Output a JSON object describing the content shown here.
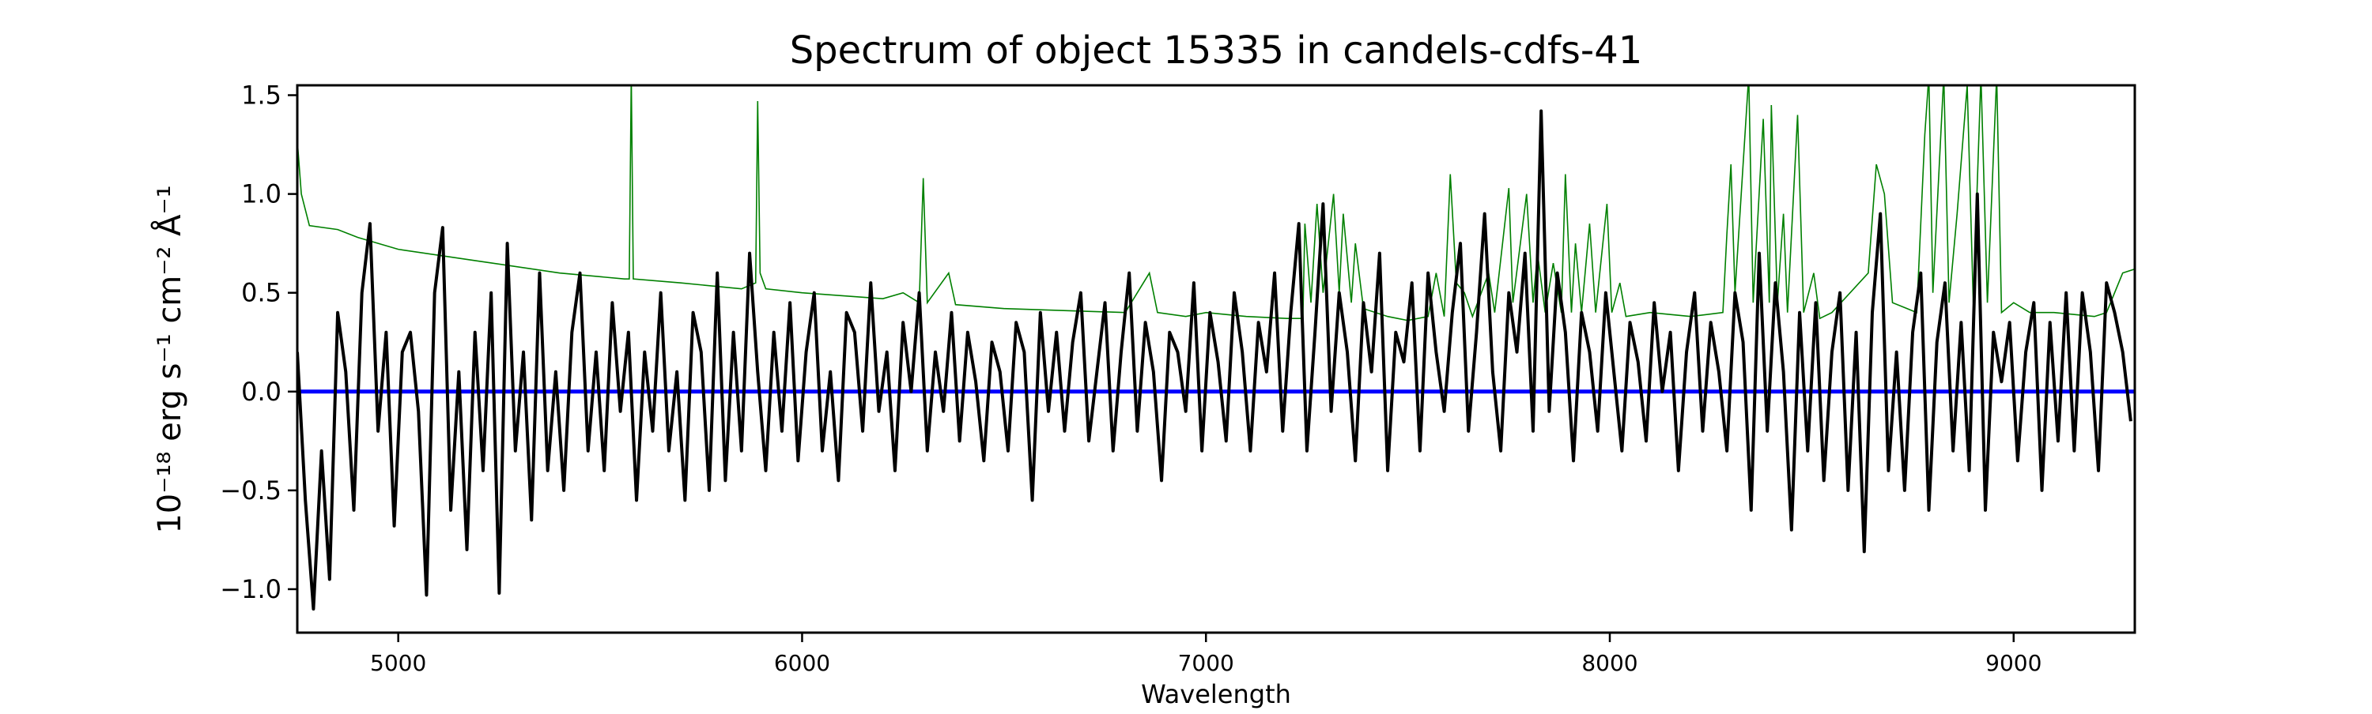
{
  "chart_data": {
    "type": "line",
    "title": "Spectrum of object 15335 in candels-cdfs-41",
    "xlabel": "Wavelength",
    "ylabel": "10⁻¹⁸ erg s⁻¹ cm⁻² Å⁻¹",
    "xlim": [
      4750,
      9300
    ],
    "ylim": [
      -1.22,
      1.55
    ],
    "xticks": [
      5000,
      6000,
      7000,
      8000,
      9000
    ],
    "xtick_labels": [
      "5000",
      "6000",
      "7000",
      "8000",
      "9000"
    ],
    "yticks": [
      -1.0,
      -0.5,
      0.0,
      0.5,
      1.0,
      1.5
    ],
    "ytick_labels": [
      "−1.0",
      "−0.5",
      "0.0",
      "0.5",
      "1.0",
      "1.5"
    ],
    "grid": false,
    "colors": {
      "flux": "#000000",
      "error": "#008000",
      "zero": "#0000ff"
    },
    "flux": {
      "x_start": 4750,
      "x_step": 20,
      "y": [
        0.2,
        -0.55,
        -1.1,
        -0.3,
        -0.95,
        0.4,
        0.1,
        -0.6,
        0.5,
        0.85,
        -0.2,
        0.3,
        -0.68,
        0.2,
        0.3,
        -0.1,
        -1.03,
        0.5,
        0.83,
        -0.6,
        0.1,
        -0.8,
        0.3,
        -0.4,
        0.5,
        -1.02,
        0.75,
        -0.3,
        0.2,
        -0.65,
        0.6,
        -0.4,
        0.1,
        -0.5,
        0.3,
        0.6,
        -0.3,
        0.2,
        -0.4,
        0.45,
        -0.1,
        0.3,
        -0.55,
        0.2,
        -0.2,
        0.5,
        -0.3,
        0.1,
        -0.55,
        0.4,
        0.2,
        -0.5,
        0.6,
        -0.45,
        0.3,
        -0.3,
        0.7,
        0.1,
        -0.4,
        0.3,
        -0.2,
        0.45,
        -0.35,
        0.2,
        0.5,
        -0.3,
        0.1,
        -0.45,
        0.4,
        0.3,
        -0.2,
        0.55,
        -0.1,
        0.2,
        -0.4,
        0.35,
        0.0,
        0.5,
        -0.3,
        0.2,
        -0.1,
        0.4,
        -0.25,
        0.3,
        0.05,
        -0.35,
        0.25,
        0.1,
        -0.3,
        0.35,
        0.2,
        -0.55,
        0.4,
        -0.1,
        0.3,
        -0.2,
        0.25,
        0.5,
        -0.25,
        0.1,
        0.45,
        -0.3,
        0.2,
        0.6,
        -0.2,
        0.35,
        0.1,
        -0.45,
        0.3,
        0.2,
        -0.1,
        0.55,
        -0.3,
        0.4,
        0.15,
        -0.25,
        0.5,
        0.2,
        -0.3,
        0.35,
        0.1,
        0.6,
        -0.2,
        0.4,
        0.85,
        -0.3,
        0.3,
        0.95,
        -0.1,
        0.5,
        0.2,
        -0.35,
        0.45,
        0.1,
        0.7,
        -0.4,
        0.3,
        0.15,
        0.55,
        -0.3,
        0.6,
        0.2,
        -0.1,
        0.4,
        0.75,
        -0.2,
        0.3,
        0.9,
        0.1,
        -0.3,
        0.5,
        0.2,
        0.7,
        -0.2,
        1.42,
        -0.1,
        0.6,
        0.3,
        -0.35,
        0.4,
        0.2,
        -0.2,
        0.5,
        0.1,
        -0.3,
        0.35,
        0.15,
        -0.25,
        0.45,
        0.0,
        0.3,
        -0.4,
        0.2,
        0.5,
        -0.2,
        0.35,
        0.1,
        -0.3,
        0.5,
        0.25,
        -0.6,
        0.7,
        -0.2,
        0.55,
        0.1,
        -0.7,
        0.4,
        -0.3,
        0.45,
        -0.45,
        0.2,
        0.5,
        -0.5,
        0.3,
        -0.81,
        0.4,
        0.9,
        -0.4,
        0.2,
        -0.5,
        0.3,
        0.6,
        -0.6,
        0.25,
        0.55,
        -0.3,
        0.35,
        -0.4,
        1.0,
        -0.6,
        0.3,
        0.05,
        0.35,
        -0.35,
        0.2,
        0.45,
        -0.5,
        0.35,
        -0.25,
        0.5,
        -0.3,
        0.5,
        0.2,
        -0.4,
        0.55,
        0.4,
        0.2,
        -0.15
      ]
    },
    "error": [
      [
        4750,
        1.27
      ],
      [
        4760,
        1.0
      ],
      [
        4780,
        0.84
      ],
      [
        4850,
        0.82
      ],
      [
        4900,
        0.78
      ],
      [
        5000,
        0.72
      ],
      [
        5200,
        0.66
      ],
      [
        5400,
        0.6
      ],
      [
        5560,
        0.57
      ],
      [
        5572,
        0.57
      ],
      [
        5577,
        1.6
      ],
      [
        5582,
        0.57
      ],
      [
        5700,
        0.55
      ],
      [
        5850,
        0.52
      ],
      [
        5885,
        0.55
      ],
      [
        5890,
        1.47
      ],
      [
        5896,
        0.6
      ],
      [
        5910,
        0.52
      ],
      [
        6000,
        0.5
      ],
      [
        6200,
        0.47
      ],
      [
        6250,
        0.5
      ],
      [
        6290,
        0.45
      ],
      [
        6300,
        1.08
      ],
      [
        6310,
        0.45
      ],
      [
        6363,
        0.6
      ],
      [
        6380,
        0.44
      ],
      [
        6500,
        0.42
      ],
      [
        6800,
        0.4
      ],
      [
        6860,
        0.6
      ],
      [
        6880,
        0.4
      ],
      [
        6950,
        0.38
      ],
      [
        7000,
        0.4
      ],
      [
        7100,
        0.38
      ],
      [
        7200,
        0.37
      ],
      [
        7240,
        0.37
      ],
      [
        7245,
        0.85
      ],
      [
        7260,
        0.45
      ],
      [
        7275,
        0.95
      ],
      [
        7290,
        0.5
      ],
      [
        7316,
        1.0
      ],
      [
        7330,
        0.5
      ],
      [
        7340,
        0.9
      ],
      [
        7360,
        0.45
      ],
      [
        7370,
        0.75
      ],
      [
        7390,
        0.42
      ],
      [
        7450,
        0.38
      ],
      [
        7500,
        0.36
      ],
      [
        7550,
        0.38
      ],
      [
        7570,
        0.6
      ],
      [
        7590,
        0.38
      ],
      [
        7605,
        1.1
      ],
      [
        7620,
        0.55
      ],
      [
        7640,
        0.5
      ],
      [
        7660,
        0.38
      ],
      [
        7700,
        0.6
      ],
      [
        7715,
        0.4
      ],
      [
        7750,
        1.03
      ],
      [
        7760,
        0.45
      ],
      [
        7794,
        1.0
      ],
      [
        7810,
        0.45
      ],
      [
        7821,
        0.7
      ],
      [
        7840,
        0.4
      ],
      [
        7860,
        0.65
      ],
      [
        7880,
        0.4
      ],
      [
        7890,
        1.1
      ],
      [
        7905,
        0.4
      ],
      [
        7915,
        0.75
      ],
      [
        7930,
        0.4
      ],
      [
        7950,
        0.85
      ],
      [
        7965,
        0.4
      ],
      [
        7993,
        0.95
      ],
      [
        8005,
        0.4
      ],
      [
        8025,
        0.55
      ],
      [
        8040,
        0.38
      ],
      [
        8100,
        0.4
      ],
      [
        8200,
        0.38
      ],
      [
        8280,
        0.4
      ],
      [
        8290,
        0.8
      ],
      [
        8300,
        1.15
      ],
      [
        8310,
        0.5
      ],
      [
        8344,
        1.6
      ],
      [
        8355,
        0.45
      ],
      [
        8380,
        1.38
      ],
      [
        8395,
        0.45
      ],
      [
        8400,
        1.45
      ],
      [
        8415,
        0.45
      ],
      [
        8430,
        0.9
      ],
      [
        8440,
        0.4
      ],
      [
        8465,
        1.4
      ],
      [
        8480,
        0.4
      ],
      [
        8505,
        0.6
      ],
      [
        8520,
        0.37
      ],
      [
        8550,
        0.4
      ],
      [
        8640,
        0.6
      ],
      [
        8660,
        1.15
      ],
      [
        8680,
        1.0
      ],
      [
        8700,
        0.45
      ],
      [
        8760,
        0.4
      ],
      [
        8770,
        0.85
      ],
      [
        8780,
        1.3
      ],
      [
        8790,
        1.6
      ],
      [
        8800,
        0.5
      ],
      [
        8827,
        1.6
      ],
      [
        8840,
        0.45
      ],
      [
        8860,
        0.9
      ],
      [
        8885,
        1.55
      ],
      [
        8900,
        0.45
      ],
      [
        8919,
        1.6
      ],
      [
        8935,
        0.45
      ],
      [
        8958,
        1.6
      ],
      [
        8970,
        0.4
      ],
      [
        9000,
        0.45
      ],
      [
        9040,
        0.4
      ],
      [
        9100,
        0.4
      ],
      [
        9200,
        0.38
      ],
      [
        9230,
        0.4
      ],
      [
        9270,
        0.6
      ],
      [
        9300,
        0.62
      ]
    ],
    "zero_level": 0.0
  }
}
